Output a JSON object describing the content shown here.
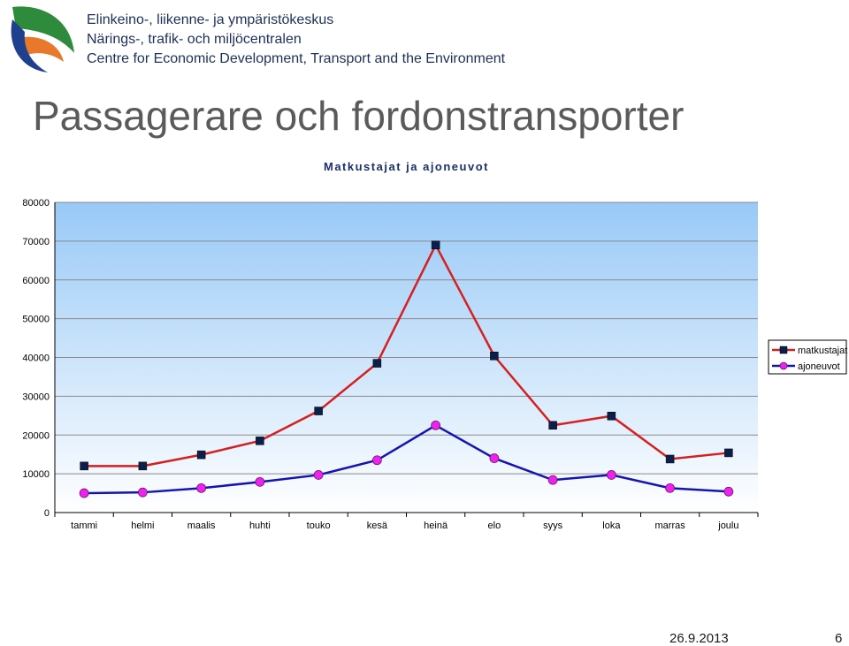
{
  "header": {
    "org_line1": "Elinkeino-, liikenne- ja ympäristökeskus",
    "org_line2": "Närings-, trafik- och miljöcentralen",
    "org_line3": "Centre for Economic Development, Transport and the Environment"
  },
  "slide": {
    "title": "Passagerare och fordonstransporter"
  },
  "footer": {
    "date": "26.9.2013",
    "page": "6"
  },
  "colors": {
    "plot_top": "#99c9f7",
    "plot_bottom": "#ffffff",
    "series1_line": "#d42020",
    "series1_marker": "#0b1f4a",
    "series2_line": "#1414b4",
    "series2_marker": "#ee22ee",
    "logo_green": "#2e8b3c",
    "logo_orange": "#e8792a",
    "logo_blue": "#1f3f8f"
  },
  "chart_data": {
    "type": "line",
    "title": "Matkustajat ja ajoneuvot",
    "categories": [
      "tammi",
      "helmi",
      "maalis",
      "huhti",
      "touko",
      "kesä",
      "heinä",
      "elo",
      "syys",
      "loka",
      "marras",
      "joulu"
    ],
    "series": [
      {
        "name": "matkustajat",
        "values": [
          12000,
          12000,
          14900,
          18500,
          26200,
          38500,
          69000,
          40400,
          22500,
          24900,
          13800,
          15400
        ]
      },
      {
        "name": "ajoneuvot",
        "values": [
          5000,
          5200,
          6300,
          7900,
          9700,
          13500,
          22500,
          14000,
          8400,
          9700,
          6300,
          5400
        ]
      }
    ],
    "ylim": [
      0,
      80000
    ],
    "yticks": [
      0,
      10000,
      20000,
      30000,
      40000,
      50000,
      60000,
      70000,
      80000
    ],
    "grid": true,
    "legend": "right"
  }
}
